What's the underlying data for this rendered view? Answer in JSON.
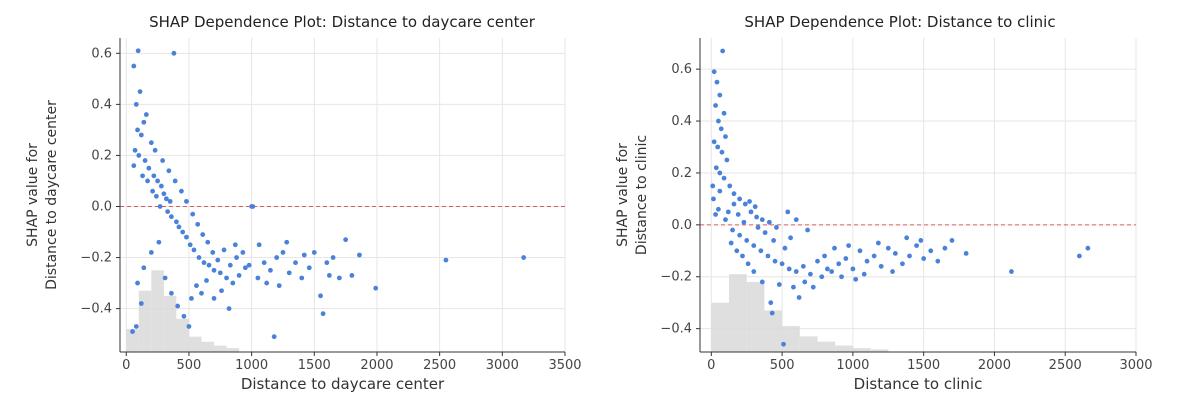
{
  "colors": {
    "point": "#4a82d9",
    "zero_line": "#e05c5c",
    "histogram": "#d9d9d9",
    "grid": "#e6e6e6"
  },
  "chart_data": [
    {
      "type": "scatter",
      "title": "SHAP Dependence Plot: Distance to daycare center",
      "xlabel": "Distance to daycare center",
      "ylabel": [
        "SHAP value for",
        "Distance to daycare center"
      ],
      "xlim": [
        -50,
        3500
      ],
      "ylim": [
        -0.57,
        0.66
      ],
      "xticks": [
        0,
        500,
        1000,
        1500,
        2000,
        2500,
        3000,
        3500
      ],
      "yticks": [
        -0.4,
        -0.2,
        0.0,
        0.2,
        0.4,
        0.6
      ],
      "ytick_labels": [
        "−0.4",
        "−0.2",
        "0.0",
        "0.2",
        "0.4",
        "0.6"
      ],
      "grid": true,
      "zero_line": 0,
      "histogram": {
        "bin_width": 100,
        "bin_starts": [
          0,
          100,
          200,
          300,
          400,
          500,
          600,
          700,
          800
        ],
        "tops": [
          -0.48,
          -0.33,
          -0.25,
          -0.35,
          -0.44,
          -0.51,
          -0.53,
          -0.545,
          -0.555
        ]
      },
      "points": [
        [
          60,
          0.55
        ],
        [
          95,
          0.61
        ],
        [
          380,
          0.6
        ],
        [
          110,
          0.45
        ],
        [
          80,
          0.4
        ],
        [
          160,
          0.36
        ],
        [
          140,
          0.33
        ],
        [
          90,
          0.3
        ],
        [
          120,
          0.28
        ],
        [
          200,
          0.25
        ],
        [
          70,
          0.22
        ],
        [
          100,
          0.2
        ],
        [
          150,
          0.18
        ],
        [
          180,
          0.15
        ],
        [
          220,
          0.12
        ],
        [
          250,
          0.1
        ],
        [
          280,
          0.08
        ],
        [
          300,
          0.05
        ],
        [
          320,
          0.03
        ],
        [
          350,
          0.02
        ],
        [
          60,
          0.16
        ],
        [
          130,
          0.12
        ],
        [
          170,
          0.1
        ],
        [
          210,
          0.06
        ],
        [
          240,
          0.04
        ],
        [
          270,
          0.0
        ],
        [
          330,
          -0.02
        ],
        [
          360,
          -0.04
        ],
        [
          400,
          -0.06
        ],
        [
          420,
          -0.08
        ],
        [
          450,
          -0.1
        ],
        [
          480,
          -0.12
        ],
        [
          510,
          -0.15
        ],
        [
          540,
          -0.17
        ],
        [
          580,
          -0.2
        ],
        [
          620,
          -0.22
        ],
        [
          660,
          -0.23
        ],
        [
          700,
          -0.25
        ],
        [
          750,
          -0.26
        ],
        [
          800,
          -0.28
        ],
        [
          850,
          -0.3
        ],
        [
          900,
          -0.27
        ],
        [
          950,
          -0.24
        ],
        [
          1000,
          0.0
        ],
        [
          1010,
          0.0
        ],
        [
          1050,
          -0.28
        ],
        [
          1100,
          -0.22
        ],
        [
          1150,
          -0.25
        ],
        [
          1200,
          -0.2
        ],
        [
          1250,
          -0.18
        ],
        [
          1300,
          -0.26
        ],
        [
          1350,
          -0.22
        ],
        [
          1400,
          -0.28
        ],
        [
          1500,
          -0.18
        ],
        [
          1550,
          -0.35
        ],
        [
          1600,
          -0.22
        ],
        [
          1650,
          -0.2
        ],
        [
          1700,
          -0.28
        ],
        [
          1750,
          -0.13
        ],
        [
          1800,
          -0.27
        ],
        [
          1990,
          -0.32
        ],
        [
          2550,
          -0.21
        ],
        [
          3170,
          -0.2
        ],
        [
          1180,
          -0.51
        ],
        [
          1570,
          -0.42
        ],
        [
          80,
          -0.47
        ],
        [
          50,
          -0.49
        ],
        [
          120,
          -0.38
        ],
        [
          90,
          -0.3
        ],
        [
          140,
          -0.24
        ],
        [
          200,
          -0.18
        ],
        [
          260,
          -0.14
        ],
        [
          310,
          -0.28
        ],
        [
          360,
          -0.34
        ],
        [
          410,
          -0.39
        ],
        [
          460,
          -0.43
        ],
        [
          500,
          -0.47
        ],
        [
          520,
          -0.36
        ],
        [
          560,
          -0.31
        ],
        [
          600,
          -0.34
        ],
        [
          640,
          -0.29
        ],
        [
          700,
          -0.36
        ],
        [
          760,
          -0.33
        ],
        [
          820,
          -0.4
        ],
        [
          880,
          -0.2
        ],
        [
          930,
          -0.18
        ],
        [
          980,
          -0.23
        ],
        [
          1060,
          -0.15
        ],
        [
          1120,
          -0.3
        ],
        [
          1220,
          -0.31
        ],
        [
          1280,
          -0.14
        ],
        [
          1420,
          -0.19
        ],
        [
          1460,
          -0.24
        ],
        [
          1620,
          -0.27
        ],
        [
          1860,
          -0.19
        ],
        [
          230,
          0.22
        ],
        [
          290,
          0.18
        ],
        [
          340,
          0.14
        ],
        [
          390,
          0.1
        ],
        [
          440,
          0.06
        ],
        [
          480,
          0.02
        ],
        [
          530,
          -0.03
        ],
        [
          570,
          -0.07
        ],
        [
          610,
          -0.11
        ],
        [
          650,
          -0.14
        ],
        [
          690,
          -0.18
        ],
        [
          730,
          -0.21
        ],
        [
          780,
          -0.17
        ],
        [
          830,
          -0.23
        ],
        [
          870,
          -0.15
        ]
      ]
    },
    {
      "type": "scatter",
      "title": "SHAP Dependence Plot: Distance to clinic",
      "xlabel": "Distance to clinic",
      "ylabel": [
        "SHAP value for",
        "Distance to clinic"
      ],
      "xlim": [
        -80,
        3000
      ],
      "ylim": [
        -0.49,
        0.72
      ],
      "xticks": [
        0,
        500,
        1000,
        1500,
        2000,
        2500,
        3000
      ],
      "yticks": [
        -0.4,
        -0.2,
        0.0,
        0.2,
        0.4,
        0.6
      ],
      "ytick_labels": [
        "−0.4",
        "−0.2",
        "0.0",
        "0.2",
        "0.4",
        "0.6"
      ],
      "grid": true,
      "zero_line": 0,
      "histogram": {
        "bin_width": 125,
        "bin_starts": [
          0,
          125,
          250,
          375,
          500,
          625,
          750,
          875,
          1000,
          1125
        ],
        "tops": [
          -0.3,
          -0.19,
          -0.22,
          -0.33,
          -0.39,
          -0.43,
          -0.45,
          -0.465,
          -0.475,
          -0.48
        ]
      },
      "points": [
        [
          80,
          0.67
        ],
        [
          20,
          0.59
        ],
        [
          40,
          0.55
        ],
        [
          60,
          0.5
        ],
        [
          30,
          0.46
        ],
        [
          90,
          0.43
        ],
        [
          50,
          0.4
        ],
        [
          70,
          0.37
        ],
        [
          100,
          0.34
        ],
        [
          20,
          0.32
        ],
        [
          45,
          0.3
        ],
        [
          75,
          0.28
        ],
        [
          110,
          0.25
        ],
        [
          35,
          0.22
        ],
        [
          60,
          0.2
        ],
        [
          90,
          0.18
        ],
        [
          130,
          0.15
        ],
        [
          160,
          0.12
        ],
        [
          200,
          0.1
        ],
        [
          240,
          0.08
        ],
        [
          280,
          0.05
        ],
        [
          320,
          0.03
        ],
        [
          360,
          0.02
        ],
        [
          15,
          0.1
        ],
        [
          50,
          0.06
        ],
        [
          100,
          0.02
        ],
        [
          150,
          -0.02
        ],
        [
          200,
          -0.04
        ],
        [
          250,
          -0.06
        ],
        [
          300,
          -0.08
        ],
        [
          350,
          -0.1
        ],
        [
          400,
          -0.12
        ],
        [
          450,
          -0.14
        ],
        [
          500,
          -0.15
        ],
        [
          550,
          -0.17
        ],
        [
          600,
          -0.18
        ],
        [
          650,
          -0.16
        ],
        [
          700,
          -0.19
        ],
        [
          750,
          -0.14
        ],
        [
          800,
          -0.12
        ],
        [
          850,
          -0.18
        ],
        [
          900,
          -0.15
        ],
        [
          950,
          -0.13
        ],
        [
          1000,
          -0.17
        ],
        [
          1050,
          -0.1
        ],
        [
          1100,
          -0.14
        ],
        [
          1150,
          -0.12
        ],
        [
          1200,
          -0.16
        ],
        [
          1250,
          -0.09
        ],
        [
          1300,
          -0.11
        ],
        [
          1350,
          -0.15
        ],
        [
          1400,
          -0.12
        ],
        [
          1450,
          -0.08
        ],
        [
          1500,
          -0.13
        ],
        [
          1550,
          -0.1
        ],
        [
          1600,
          -0.14
        ],
        [
          1650,
          -0.09
        ],
        [
          1700,
          -0.06
        ],
        [
          1800,
          -0.11
        ],
        [
          2120,
          -0.18
        ],
        [
          2600,
          -0.12
        ],
        [
          2660,
          -0.09
        ],
        [
          510,
          -0.46
        ],
        [
          430,
          -0.34
        ],
        [
          620,
          -0.28
        ],
        [
          580,
          -0.24
        ],
        [
          480,
          -0.23
        ],
        [
          420,
          -0.3
        ],
        [
          360,
          -0.22
        ],
        [
          300,
          -0.18
        ],
        [
          260,
          -0.15
        ],
        [
          220,
          -0.12
        ],
        [
          180,
          -0.1
        ],
        [
          140,
          -0.07
        ],
        [
          120,
          0.05
        ],
        [
          160,
          0.08
        ],
        [
          60,
          0.13
        ],
        [
          30,
          0.04
        ],
        [
          10,
          0.15
        ],
        [
          380,
          -0.03
        ],
        [
          440,
          -0.06
        ],
        [
          520,
          -0.09
        ],
        [
          560,
          -0.05
        ],
        [
          660,
          -0.22
        ],
        [
          720,
          -0.24
        ],
        [
          780,
          -0.2
        ],
        [
          820,
          -0.17
        ],
        [
          870,
          -0.09
        ],
        [
          920,
          -0.2
        ],
        [
          970,
          -0.08
        ],
        [
          1020,
          -0.21
        ],
        [
          1080,
          -0.19
        ],
        [
          1180,
          -0.07
        ],
        [
          1280,
          -0.18
        ],
        [
          1380,
          -0.05
        ],
        [
          1480,
          -0.06
        ],
        [
          270,
          0.09
        ],
        [
          310,
          0.07
        ],
        [
          330,
          -0.01
        ],
        [
          230,
          0.01
        ],
        [
          190,
          0.04
        ],
        [
          410,
          0.01
        ],
        [
          460,
          -0.01
        ],
        [
          540,
          0.05
        ],
        [
          600,
          0.02
        ],
        [
          680,
          -0.02
        ]
      ]
    }
  ]
}
